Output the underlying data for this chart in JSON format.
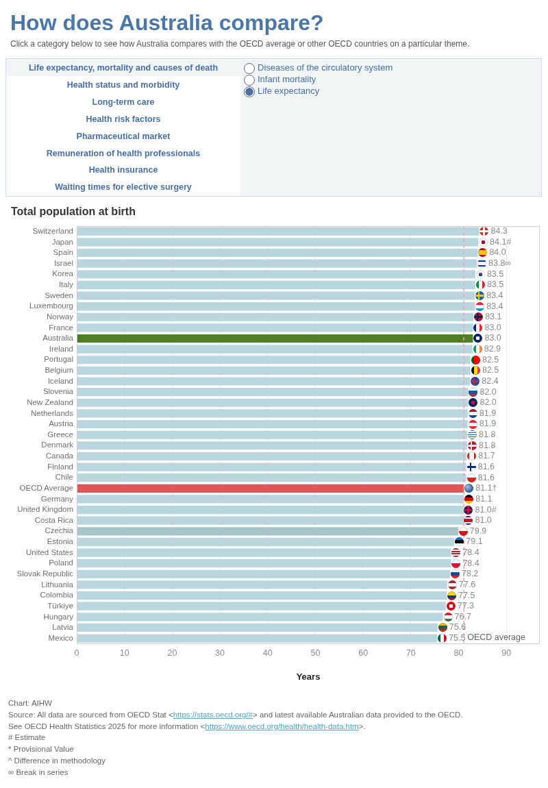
{
  "chart_data": [
    {
      "type": "other",
      "title": "How does Australia compare?",
      "subtitle": "Click a category below to see how Australia compares with the OECD average or other OECD countries on a particular theme.",
      "annotations": [
        "Life expectancy, mortality and causes of death",
        "Health status and morbidity",
        "Long-term care",
        "Health risk factors",
        "Pharmaceutical market",
        "Remuneration of health professionals",
        "Health insurance",
        "Waiting times for elective surgery"
      ]
    },
    {
      "type": "other",
      "annotations": [
        "Diseases of the circulatory system",
        "Infant mortality",
        "Life expectancy"
      ]
    },
    {
      "type": "bar",
      "orientation": "horizontal",
      "title": "Total population at birth",
      "xlabel": "Years",
      "categories": [
        "Switzerland",
        "Japan",
        "Spain",
        "Israel",
        "Korea",
        "Italy",
        "Sweden",
        "Luxembourg",
        "Norway",
        "France",
        "Australia",
        "Ireland",
        "Portugal",
        "Belgium",
        "Iceland",
        "Slovenia",
        "New Zealand",
        "Netherlands",
        "Austria",
        "Greece",
        "Denmark",
        "Canada",
        "Finland",
        "Chile",
        "OECD Average",
        "Germany",
        "United Kingdom",
        "Costa Rica",
        "Czechia",
        "Estonia",
        "United States",
        "Poland",
        "Slovak Republic",
        "Lithuania",
        "Colombia",
        "Türkiye",
        "Hungary",
        "Latvia",
        "Mexico"
      ],
      "values": [
        84.3,
        84.1,
        84.0,
        83.8,
        83.5,
        83.5,
        83.4,
        83.4,
        83.1,
        83.0,
        83.0,
        82.9,
        82.5,
        82.5,
        82.4,
        82.0,
        82.0,
        81.9,
        81.9,
        81.8,
        81.8,
        81.7,
        81.6,
        81.6,
        81.1,
        81.1,
        81.0,
        81.0,
        79.9,
        79.1,
        78.4,
        78.4,
        78.2,
        77.6,
        77.5,
        77.3,
        76.7,
        75.6,
        75.5
      ],
      "colors": [
        "#b9d6df",
        "#b9d6df",
        "#b9d6df",
        "#b9d6df",
        "#b9d6df",
        "#b9d6df",
        "#b9d6df",
        "#b9d6df",
        "#b9d6df",
        "#b9d6df",
        "#4e7d24",
        "#b9d6df",
        "#b9d6df",
        "#b9d6df",
        "#b9d6df",
        "#b9d6df",
        "#b9d6df",
        "#b9d6df",
        "#b9d6df",
        "#b9d6df",
        "#b9d6df",
        "#b9d6df",
        "#b9d6df",
        "#b9d6df",
        "#e05658",
        "#b9d6df",
        "#b9d6df",
        "#b9d6df",
        "#a9c3cb",
        "#b9d6df",
        "#b9d6df",
        "#b9d6df",
        "#b9d6df",
        "#b9d6df",
        "#b9d6df",
        "#b9d6df",
        "#b9d6df",
        "#b9d6df",
        "#b9d6df"
      ],
      "value_labels": [
        "84.3",
        "84.1#",
        "84.0",
        "83.8∞",
        "83.5",
        "83.5",
        "83.4",
        "83.4",
        "83.1",
        "83.0",
        "83.0",
        "82.9",
        "82.5",
        "82.5",
        "82.4",
        "82.0",
        "82.0",
        "81.9",
        "81.9",
        "81.8",
        "81.8",
        "81.7",
        "81.6",
        "81.6",
        "81.1†",
        "81.1",
        "81.0#",
        "81.0",
        "79.9",
        "79.1",
        "78.4",
        "78.4",
        "78.2",
        "77.6",
        "77.5",
        "77.3",
        "76.7",
        "75.6",
        "75.5"
      ],
      "xlim": [
        0,
        97
      ],
      "xticks": [
        0,
        10,
        20,
        30,
        40,
        50,
        60,
        70,
        80,
        90
      ],
      "grid": "x",
      "ref_lines": [
        {
          "axis": "x",
          "value": 81.1,
          "label": "OECD average",
          "color": "#eaaab0",
          "line_style": "dashed"
        }
      ],
      "annotations": [
        "Chart: AIHW",
        "Source: All data are sourced from OECD Stat <https://stats.oecd.org/#> and latest available Australian data provided to the OECD.",
        "See OECD Health Statistics 2025 for more information <https://www.oecd.org/health/health-data.htm>.",
        "# Estimate",
        "* Provisional Value",
        "^ Difference in methodology",
        "∞ Break in series"
      ]
    }
  ]
}
